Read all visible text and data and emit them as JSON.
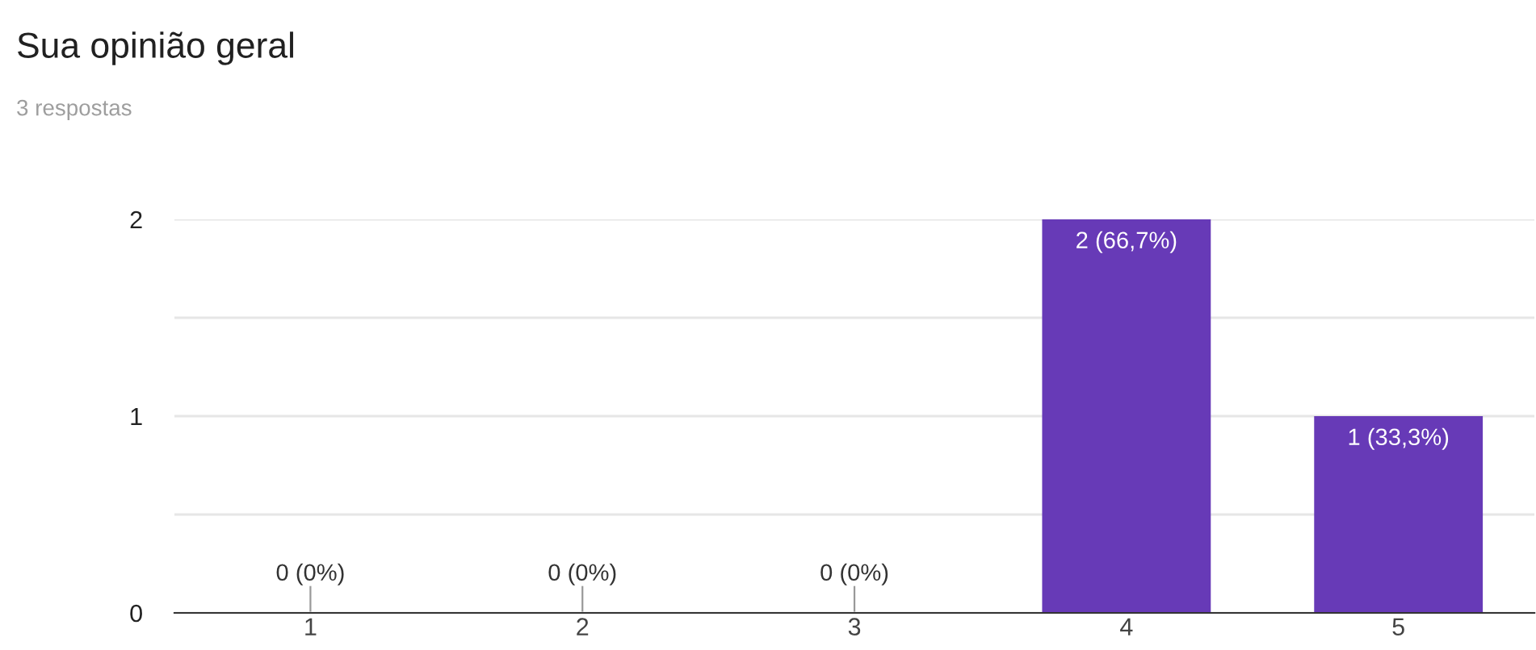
{
  "chart_data": {
    "type": "bar",
    "title": "Sua opinião geral",
    "subtitle": "3 respostas",
    "categories": [
      "1",
      "2",
      "3",
      "4",
      "5"
    ],
    "values": [
      0,
      0,
      0,
      2,
      1
    ],
    "value_labels": [
      "0 (0%)",
      "0 (0%)",
      "0 (0%)",
      "2 (66,7%)",
      "1 (33,3%)"
    ],
    "color": "#673ab7",
    "ylim": [
      0,
      2
    ],
    "yticks": [
      0,
      {
        "value": 0.5,
        "label": null
      },
      1,
      {
        "value": 1.5,
        "label": null
      },
      2
    ],
    "grid": "y"
  }
}
